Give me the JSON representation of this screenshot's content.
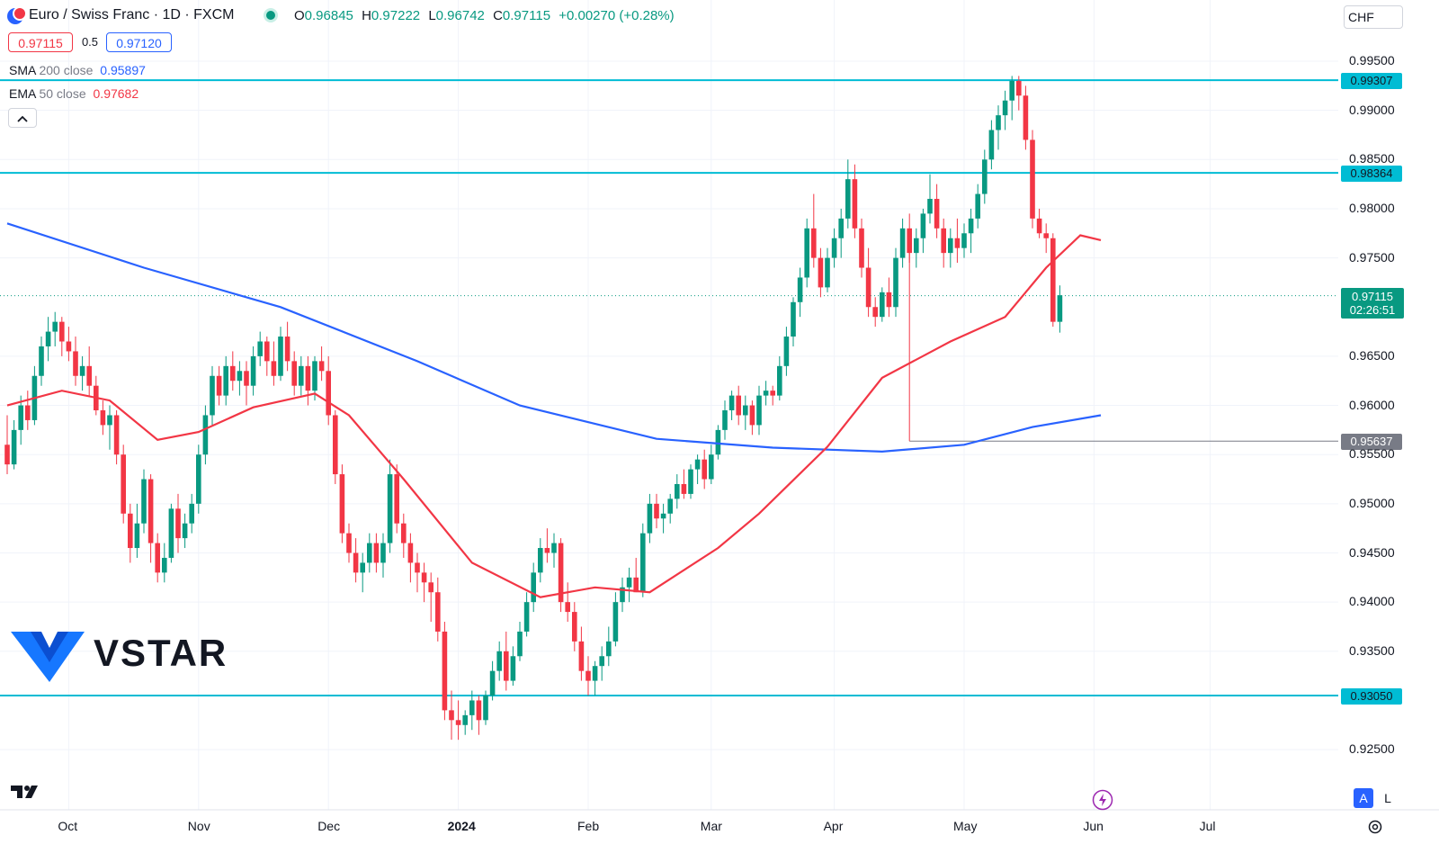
{
  "header": {
    "symbol": "Euro / Swiss Franc · 1D · FXCM",
    "o_label": "O",
    "o": "0.96845",
    "h_label": "H",
    "h": "0.97222",
    "l_label": "L",
    "l": "0.96742",
    "c_label": "C",
    "c": "0.97115",
    "change": "+0.00270 (+0.28%)",
    "currency": "CHF"
  },
  "trade": {
    "sell": "0.97115",
    "spread": "0.5",
    "buy": "0.97120"
  },
  "indicators": [
    {
      "name": "SMA",
      "params": "200 close",
      "value": "0.95897",
      "color": "#2962ff"
    },
    {
      "name": "EMA",
      "params": "50 close",
      "value": "0.97682",
      "color": "#f23645"
    }
  ],
  "collapse_icon": "chevron-up-icon",
  "watermark": "VSTAR",
  "tv_logo": "tradingview-logo",
  "bottom_buttons": {
    "auto": "A",
    "log": "L"
  },
  "lightning_icon": "lightning-icon",
  "settings_icon": "gear-icon",
  "last_price": {
    "value": "0.97115",
    "countdown": "02:26:51"
  },
  "colors": {
    "up": "#089981",
    "down": "#f23645",
    "sma": "#2962ff",
    "ema": "#f23645",
    "level": "#00bcd4"
  },
  "chart_data": {
    "type": "candlestick",
    "symbol": "EURCHF",
    "timeframe": "1D",
    "y_range": [
      0.921,
      0.996
    ],
    "y_ticks": [
      "0.99500",
      "0.99000",
      "0.98500",
      "0.98000",
      "0.97500",
      "0.96500",
      "0.96000",
      "0.95500",
      "0.95000",
      "0.94500",
      "0.94000",
      "0.93500",
      "0.92500"
    ],
    "x_ticks": [
      "Oct",
      "Nov",
      "Dec",
      "2024",
      "Feb",
      "Mar",
      "Apr",
      "May",
      "Jun",
      "Jul"
    ],
    "horizontal_levels": [
      {
        "value": 0.99307,
        "label": "0.99307"
      },
      {
        "value": 0.98364,
        "label": "0.98364"
      },
      {
        "value": 0.9305,
        "label": "0.93050"
      }
    ],
    "marker_level": {
      "value": 0.95637,
      "label": "0.95637"
    },
    "candles": [
      [
        0.956,
        0.959,
        0.953,
        0.954
      ],
      [
        0.954,
        0.9585,
        0.9535,
        0.9575
      ],
      [
        0.9575,
        0.961,
        0.956,
        0.96
      ],
      [
        0.96,
        0.9615,
        0.9575,
        0.9585
      ],
      [
        0.9585,
        0.964,
        0.958,
        0.963
      ],
      [
        0.963,
        0.967,
        0.962,
        0.966
      ],
      [
        0.966,
        0.969,
        0.9645,
        0.9675
      ],
      [
        0.9675,
        0.9695,
        0.966,
        0.9685
      ],
      [
        0.9685,
        0.969,
        0.965,
        0.9665
      ],
      [
        0.9665,
        0.968,
        0.9645,
        0.9655
      ],
      [
        0.9655,
        0.967,
        0.962,
        0.963
      ],
      [
        0.963,
        0.965,
        0.9615,
        0.964
      ],
      [
        0.964,
        0.966,
        0.961,
        0.962
      ],
      [
        0.962,
        0.963,
        0.959,
        0.9595
      ],
      [
        0.9595,
        0.9605,
        0.957,
        0.958
      ],
      [
        0.958,
        0.96,
        0.9555,
        0.959
      ],
      [
        0.959,
        0.9595,
        0.954,
        0.955
      ],
      [
        0.955,
        0.956,
        0.948,
        0.949
      ],
      [
        0.949,
        0.95,
        0.944,
        0.9455
      ],
      [
        0.9455,
        0.95,
        0.9445,
        0.948
      ],
      [
        0.948,
        0.9535,
        0.947,
        0.9525
      ],
      [
        0.9525,
        0.953,
        0.944,
        0.946
      ],
      [
        0.946,
        0.947,
        0.942,
        0.943
      ],
      [
        0.943,
        0.946,
        0.942,
        0.9445
      ],
      [
        0.9445,
        0.95,
        0.944,
        0.9495
      ],
      [
        0.9495,
        0.951,
        0.945,
        0.9465
      ],
      [
        0.9465,
        0.949,
        0.9455,
        0.948
      ],
      [
        0.948,
        0.951,
        0.947,
        0.95
      ],
      [
        0.95,
        0.956,
        0.949,
        0.955
      ],
      [
        0.955,
        0.96,
        0.954,
        0.959
      ],
      [
        0.959,
        0.964,
        0.958,
        0.963
      ],
      [
        0.963,
        0.964,
        0.96,
        0.961
      ],
      [
        0.961,
        0.965,
        0.96,
        0.964
      ],
      [
        0.964,
        0.9655,
        0.9615,
        0.9625
      ],
      [
        0.9625,
        0.9645,
        0.961,
        0.9635
      ],
      [
        0.9635,
        0.9645,
        0.96,
        0.962
      ],
      [
        0.962,
        0.966,
        0.961,
        0.965
      ],
      [
        0.965,
        0.9675,
        0.964,
        0.9665
      ],
      [
        0.9665,
        0.967,
        0.963,
        0.9645
      ],
      [
        0.9645,
        0.9665,
        0.962,
        0.963
      ],
      [
        0.963,
        0.968,
        0.9625,
        0.967
      ],
      [
        0.967,
        0.9685,
        0.9635,
        0.9645
      ],
      [
        0.9645,
        0.9655,
        0.961,
        0.962
      ],
      [
        0.962,
        0.965,
        0.961,
        0.964
      ],
      [
        0.964,
        0.965,
        0.96,
        0.9615
      ],
      [
        0.9615,
        0.965,
        0.9605,
        0.9645
      ],
      [
        0.9645,
        0.966,
        0.9625,
        0.9635
      ],
      [
        0.9635,
        0.965,
        0.958,
        0.959
      ],
      [
        0.959,
        0.9595,
        0.952,
        0.953
      ],
      [
        0.953,
        0.954,
        0.946,
        0.947
      ],
      [
        0.947,
        0.948,
        0.944,
        0.945
      ],
      [
        0.945,
        0.9465,
        0.942,
        0.943
      ],
      [
        0.943,
        0.945,
        0.941,
        0.944
      ],
      [
        0.944,
        0.947,
        0.943,
        0.946
      ],
      [
        0.946,
        0.947,
        0.943,
        0.944
      ],
      [
        0.944,
        0.947,
        0.9425,
        0.946
      ],
      [
        0.946,
        0.9545,
        0.945,
        0.953
      ],
      [
        0.953,
        0.954,
        0.947,
        0.948
      ],
      [
        0.948,
        0.949,
        0.9445,
        0.946
      ],
      [
        0.946,
        0.947,
        0.942,
        0.944
      ],
      [
        0.944,
        0.945,
        0.941,
        0.943
      ],
      [
        0.943,
        0.944,
        0.94,
        0.942
      ],
      [
        0.942,
        0.943,
        0.938,
        0.941
      ],
      [
        0.941,
        0.9425,
        0.936,
        0.937
      ],
      [
        0.937,
        0.938,
        0.928,
        0.929
      ],
      [
        0.929,
        0.931,
        0.926,
        0.928
      ],
      [
        0.928,
        0.93,
        0.926,
        0.9275
      ],
      [
        0.9275,
        0.929,
        0.9265,
        0.9285
      ],
      [
        0.9285,
        0.931,
        0.927,
        0.93
      ],
      [
        0.93,
        0.9305,
        0.9265,
        0.928
      ],
      [
        0.928,
        0.931,
        0.9275,
        0.9305
      ],
      [
        0.9305,
        0.934,
        0.93,
        0.933
      ],
      [
        0.933,
        0.936,
        0.932,
        0.935
      ],
      [
        0.935,
        0.937,
        0.931,
        0.932
      ],
      [
        0.932,
        0.9355,
        0.9315,
        0.9345
      ],
      [
        0.9345,
        0.938,
        0.934,
        0.937
      ],
      [
        0.937,
        0.941,
        0.9365,
        0.94
      ],
      [
        0.94,
        0.944,
        0.939,
        0.943
      ],
      [
        0.943,
        0.9465,
        0.942,
        0.9455
      ],
      [
        0.9455,
        0.9475,
        0.944,
        0.945
      ],
      [
        0.945,
        0.947,
        0.9435,
        0.946
      ],
      [
        0.946,
        0.9465,
        0.939,
        0.94
      ],
      [
        0.94,
        0.942,
        0.938,
        0.939
      ],
      [
        0.939,
        0.94,
        0.935,
        0.936
      ],
      [
        0.936,
        0.9375,
        0.932,
        0.933
      ],
      [
        0.933,
        0.9345,
        0.9305,
        0.932
      ],
      [
        0.932,
        0.934,
        0.9305,
        0.9335
      ],
      [
        0.9335,
        0.9355,
        0.932,
        0.9345
      ],
      [
        0.9345,
        0.9375,
        0.9335,
        0.936
      ],
      [
        0.936,
        0.941,
        0.9355,
        0.94
      ],
      [
        0.94,
        0.9425,
        0.939,
        0.9415
      ],
      [
        0.9415,
        0.9435,
        0.94,
        0.9425
      ],
      [
        0.9425,
        0.9445,
        0.941,
        0.941
      ],
      [
        0.941,
        0.948,
        0.9405,
        0.947
      ],
      [
        0.947,
        0.951,
        0.946,
        0.95
      ],
      [
        0.95,
        0.951,
        0.9475,
        0.9485
      ],
      [
        0.9485,
        0.95,
        0.947,
        0.949
      ],
      [
        0.949,
        0.951,
        0.948,
        0.9505
      ],
      [
        0.9505,
        0.953,
        0.9495,
        0.952
      ],
      [
        0.952,
        0.9535,
        0.9505,
        0.951
      ],
      [
        0.951,
        0.954,
        0.9505,
        0.9535
      ],
      [
        0.9535,
        0.955,
        0.952,
        0.9545
      ],
      [
        0.9545,
        0.9555,
        0.9515,
        0.9525
      ],
      [
        0.9525,
        0.956,
        0.952,
        0.955
      ],
      [
        0.955,
        0.958,
        0.9545,
        0.9575
      ],
      [
        0.9575,
        0.9605,
        0.9565,
        0.9595
      ],
      [
        0.9595,
        0.9615,
        0.9585,
        0.961
      ],
      [
        0.961,
        0.962,
        0.958,
        0.959
      ],
      [
        0.959,
        0.961,
        0.9575,
        0.96
      ],
      [
        0.96,
        0.9605,
        0.957,
        0.958
      ],
      [
        0.958,
        0.962,
        0.957,
        0.961
      ],
      [
        0.961,
        0.9625,
        0.96,
        0.9615
      ],
      [
        0.9615,
        0.962,
        0.96,
        0.961
      ],
      [
        0.961,
        0.965,
        0.9605,
        0.964
      ],
      [
        0.964,
        0.968,
        0.963,
        0.967
      ],
      [
        0.967,
        0.971,
        0.966,
        0.9705
      ],
      [
        0.9705,
        0.974,
        0.969,
        0.973
      ],
      [
        0.973,
        0.979,
        0.972,
        0.978
      ],
      [
        0.978,
        0.9815,
        0.974,
        0.975
      ],
      [
        0.975,
        0.976,
        0.971,
        0.972
      ],
      [
        0.972,
        0.976,
        0.9715,
        0.975
      ],
      [
        0.975,
        0.978,
        0.974,
        0.977
      ],
      [
        0.977,
        0.98,
        0.975,
        0.979
      ],
      [
        0.979,
        0.985,
        0.978,
        0.983
      ],
      [
        0.983,
        0.9845,
        0.977,
        0.978
      ],
      [
        0.978,
        0.979,
        0.973,
        0.974
      ],
      [
        0.974,
        0.976,
        0.969,
        0.97
      ],
      [
        0.97,
        0.971,
        0.968,
        0.969
      ],
      [
        0.969,
        0.972,
        0.9685,
        0.9715
      ],
      [
        0.9715,
        0.973,
        0.969,
        0.97
      ],
      [
        0.97,
        0.976,
        0.969,
        0.975
      ],
      [
        0.975,
        0.979,
        0.974,
        0.978
      ],
      [
        0.978,
        0.9795,
        0.9745,
        0.9755
      ],
      [
        0.9755,
        0.978,
        0.974,
        0.977
      ],
      [
        0.977,
        0.98,
        0.9755,
        0.9795
      ],
      [
        0.9795,
        0.9835,
        0.9785,
        0.981
      ],
      [
        0.981,
        0.9825,
        0.977,
        0.978
      ],
      [
        0.978,
        0.979,
        0.974,
        0.9755
      ],
      [
        0.9755,
        0.978,
        0.974,
        0.977
      ],
      [
        0.977,
        0.979,
        0.9745,
        0.976
      ],
      [
        0.976,
        0.9785,
        0.975,
        0.9775
      ],
      [
        0.9775,
        0.98,
        0.9755,
        0.979
      ],
      [
        0.979,
        0.9825,
        0.978,
        0.9815
      ],
      [
        0.9815,
        0.986,
        0.9805,
        0.985
      ],
      [
        0.985,
        0.989,
        0.984,
        0.988
      ],
      [
        0.988,
        0.9905,
        0.986,
        0.9895
      ],
      [
        0.9895,
        0.992,
        0.988,
        0.991
      ],
      [
        0.991,
        0.9935,
        0.989,
        0.993
      ],
      [
        0.993,
        0.9935,
        0.99,
        0.9915
      ],
      [
        0.9915,
        0.9925,
        0.986,
        0.987
      ],
      [
        0.987,
        0.988,
        0.978,
        0.979
      ],
      [
        0.979,
        0.98,
        0.977,
        0.9775
      ],
      [
        0.9775,
        0.9785,
        0.9755,
        0.977
      ],
      [
        0.977,
        0.9775,
        0.968,
        0.9685
      ],
      [
        0.9685,
        0.9722,
        0.9674,
        0.9712
      ]
    ],
    "ema50": [
      [
        0,
        0.96
      ],
      [
        8,
        0.9615
      ],
      [
        15,
        0.9605
      ],
      [
        22,
        0.9565
      ],
      [
        28,
        0.9573
      ],
      [
        36,
        0.9598
      ],
      [
        45,
        0.9612
      ],
      [
        50,
        0.959
      ],
      [
        58,
        0.9525
      ],
      [
        68,
        0.944
      ],
      [
        78,
        0.9405
      ],
      [
        86,
        0.9415
      ],
      [
        94,
        0.941
      ],
      [
        104,
        0.9455
      ],
      [
        110,
        0.949
      ],
      [
        120,
        0.9558
      ],
      [
        128,
        0.9628
      ],
      [
        138,
        0.9665
      ],
      [
        146,
        0.969
      ],
      [
        152,
        0.974
      ],
      [
        157,
        0.9773
      ],
      [
        160,
        0.9768
      ]
    ],
    "sma200": [
      [
        0,
        0.9785
      ],
      [
        20,
        0.974
      ],
      [
        40,
        0.97
      ],
      [
        60,
        0.9645
      ],
      [
        75,
        0.96
      ],
      [
        95,
        0.9566
      ],
      [
        112,
        0.9557
      ],
      [
        128,
        0.9553
      ],
      [
        140,
        0.956
      ],
      [
        150,
        0.9578
      ],
      [
        160,
        0.959
      ]
    ]
  }
}
